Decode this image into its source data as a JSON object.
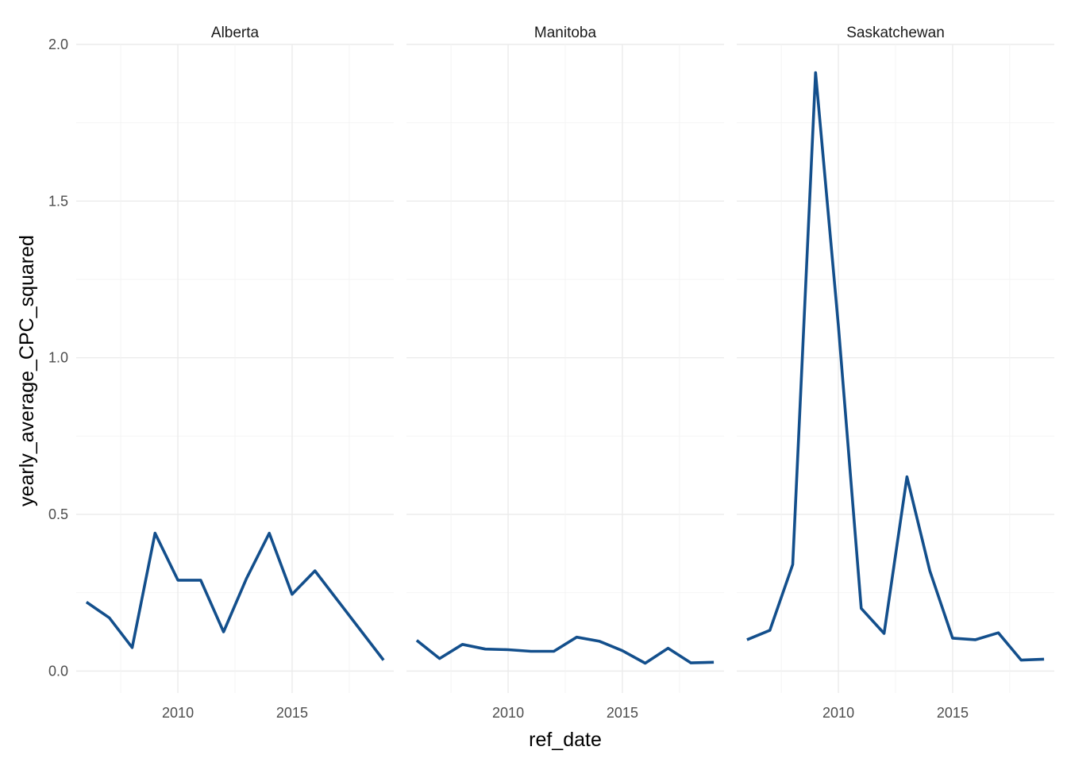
{
  "chart_data": {
    "type": "line",
    "xlabel": "ref_date",
    "ylabel": "yearly_average_CPC_squared",
    "xlim": [
      2005.55,
      2019.45
    ],
    "ylim": [
      -0.07,
      2.0
    ],
    "x_ticks": [
      2010,
      2015
    ],
    "y_ticks": [
      0.0,
      0.5,
      1.0,
      1.5,
      2.0
    ],
    "y_tick_labels": [
      "0.0",
      "0.5",
      "1.0",
      "1.5",
      "2.0"
    ],
    "grid": true,
    "line_color": "#134f8c",
    "panels": [
      {
        "title": "Alberta",
        "x": [
          2006,
          2007,
          2008,
          2009,
          2010,
          2011,
          2012,
          2013,
          2014,
          2015,
          2016,
          2017,
          2018,
          2019
        ],
        "y": [
          0.22,
          0.17,
          0.075,
          0.44,
          0.29,
          0.29,
          0.125,
          0.295,
          0.44,
          0.245,
          0.32,
          0.225,
          0.13,
          0.035
        ]
      },
      {
        "title": "Manitoba",
        "x": [
          2006,
          2007,
          2008,
          2009,
          2010,
          2011,
          2012,
          2013,
          2014,
          2015,
          2016,
          2017,
          2018,
          2019
        ],
        "y": [
          0.098,
          0.04,
          0.085,
          0.07,
          0.068,
          0.063,
          0.063,
          0.108,
          0.095,
          0.065,
          0.025,
          0.073,
          0.026,
          0.028
        ]
      },
      {
        "title": "Saskatchewan",
        "x": [
          2006,
          2007,
          2008,
          2009,
          2010,
          2011,
          2012,
          2013,
          2014,
          2015,
          2016,
          2017,
          2018,
          2019
        ],
        "y": [
          0.1,
          0.13,
          0.34,
          1.91,
          1.1,
          0.2,
          0.12,
          0.62,
          0.32,
          0.105,
          0.1,
          0.122,
          0.035,
          0.038
        ]
      }
    ]
  }
}
